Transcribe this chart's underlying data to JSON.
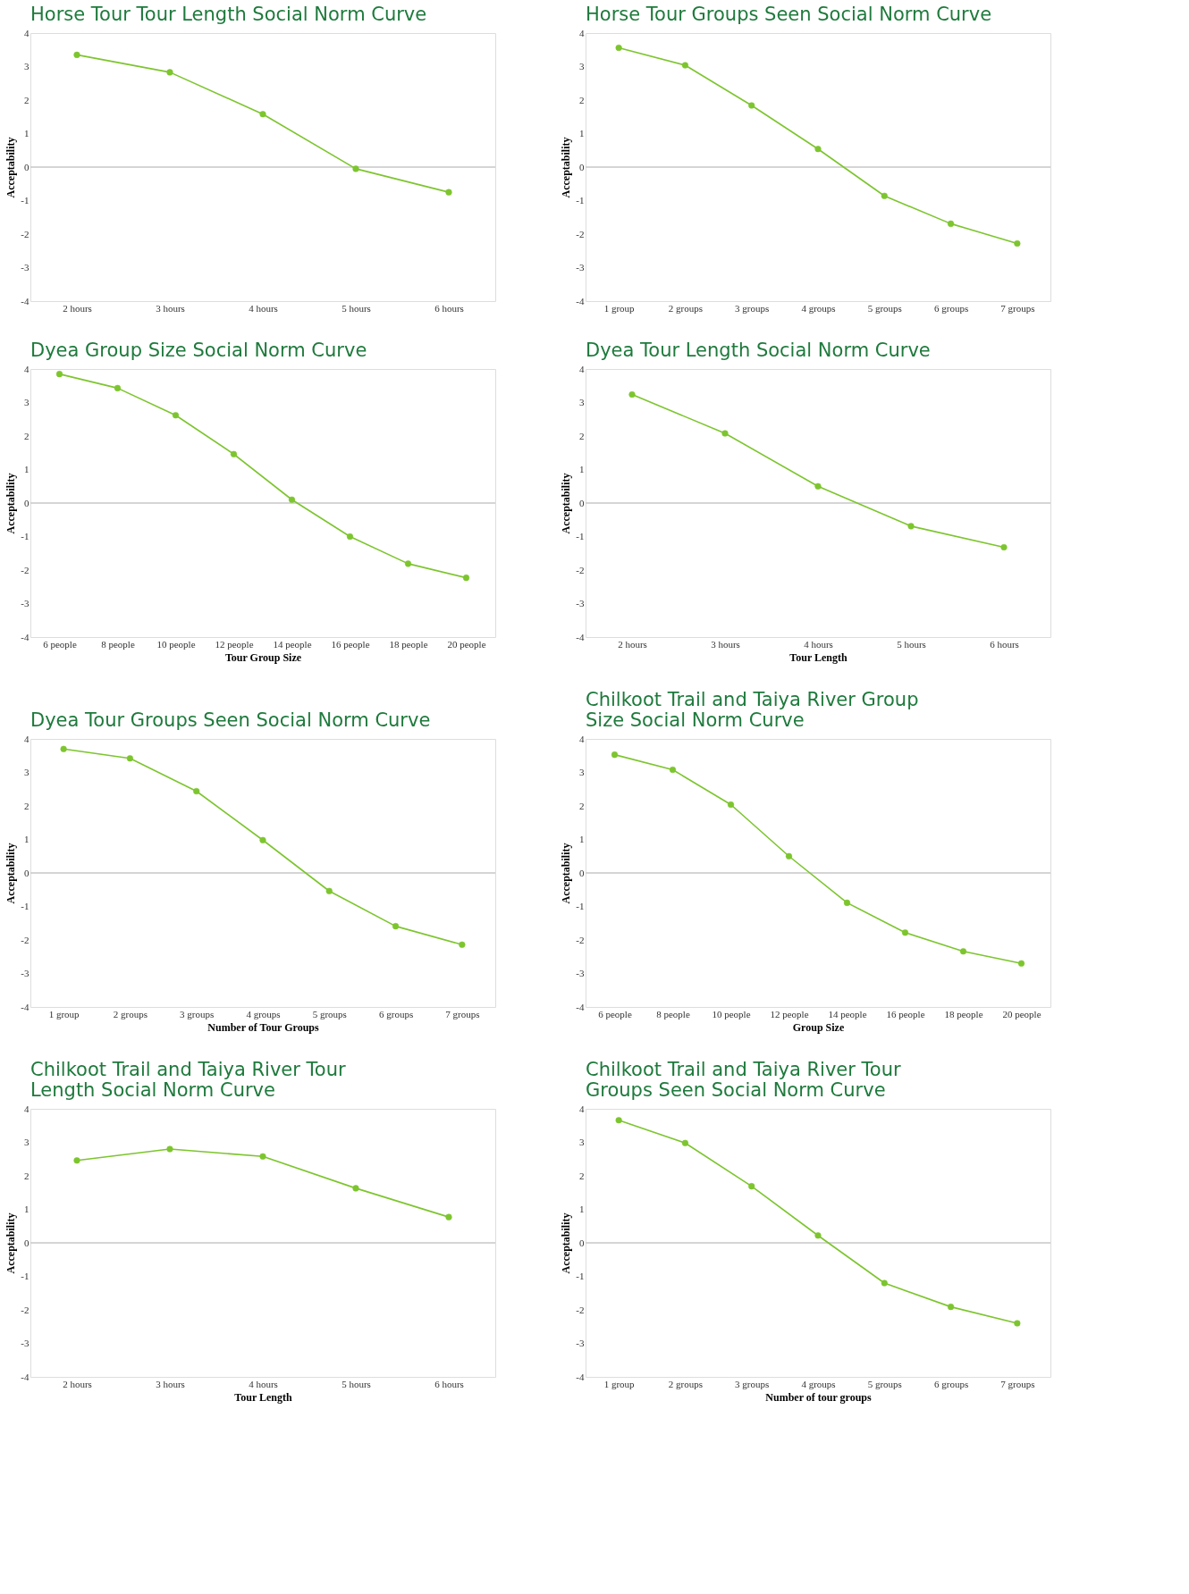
{
  "chart_data": [
    {
      "type": "line",
      "title": "Horse Tour Tour Length Social Norm Curve",
      "ylabel": "Acceptability",
      "categories": [
        "2 hours",
        "3 hours",
        "4 hours",
        "5 hours",
        "6 hours"
      ],
      "series": [
        {
          "color": "#7dc52e",
          "values": [
            3.35,
            2.83,
            1.58,
            -0.05,
            -0.75
          ]
        }
      ],
      "ylim": [
        -4,
        4
      ],
      "yticks": [
        -4,
        -3,
        -2,
        -1,
        0,
        1,
        2,
        3,
        4
      ],
      "ref_lines": [
        {
          "axis": "y",
          "value": 0,
          "color": "#c8c8c8"
        }
      ],
      "marker": "circle",
      "grid": false
    },
    {
      "type": "line",
      "title": "Horse Tour Groups Seen Social Norm Curve",
      "ylabel": "Acceptability",
      "categories": [
        "1 group",
        "2 groups",
        "3 groups",
        "4 groups",
        "5 groups",
        "6 groups",
        "7 groups"
      ],
      "series": [
        {
          "color": "#7dc52e",
          "values": [
            3.56,
            3.04,
            1.84,
            0.54,
            -0.86,
            -1.69,
            -2.28
          ]
        }
      ],
      "ylim": [
        -4,
        4
      ],
      "yticks": [
        -4,
        -3,
        -2,
        -1,
        0,
        1,
        2,
        3,
        4
      ],
      "ref_lines": [
        {
          "axis": "y",
          "value": 0,
          "color": "#c8c8c8"
        }
      ],
      "marker": "circle",
      "grid": false
    },
    {
      "type": "line",
      "title": "Dyea Group Size Social Norm Curve",
      "xlabel": "Tour Group Size",
      "ylabel": "Acceptability",
      "categories": [
        "6 people",
        "8 people",
        "10 people",
        "12 people",
        "14 people",
        "16 people",
        "18 people",
        "20 people"
      ],
      "series": [
        {
          "color": "#7dc52e",
          "values": [
            3.85,
            3.43,
            2.62,
            1.46,
            0.1,
            -1.0,
            -1.81,
            -2.23
          ]
        }
      ],
      "ylim": [
        -4,
        4
      ],
      "yticks": [
        -4,
        -3,
        -2,
        -1,
        0,
        1,
        2,
        3,
        4
      ],
      "ref_lines": [
        {
          "axis": "y",
          "value": 0,
          "color": "#c8c8c8"
        }
      ],
      "marker": "circle",
      "grid": false
    },
    {
      "type": "line",
      "title": "Dyea Tour Length Social Norm Curve",
      "xlabel": "Tour Length",
      "ylabel": "Acceptability",
      "categories": [
        "2 hours",
        "3 hours",
        "4 hours",
        "5 hours",
        "6 hours"
      ],
      "series": [
        {
          "color": "#7dc52e",
          "values": [
            3.24,
            2.08,
            0.5,
            -0.69,
            -1.32
          ]
        }
      ],
      "ylim": [
        -4,
        4
      ],
      "yticks": [
        -4,
        -3,
        -2,
        -1,
        0,
        1,
        2,
        3,
        4
      ],
      "ref_lines": [
        {
          "axis": "y",
          "value": 0,
          "color": "#c8c8c8"
        }
      ],
      "marker": "circle",
      "grid": false
    },
    {
      "type": "line",
      "title": "Dyea Tour Groups Seen Social Norm Curve",
      "xlabel": "Number of Tour Groups",
      "ylabel": "Acceptability",
      "categories": [
        "1 group",
        "2 groups",
        "3 groups",
        "4 groups",
        "5 groups",
        "6 groups",
        "7 groups"
      ],
      "series": [
        {
          "color": "#7dc52e",
          "values": [
            3.7,
            3.42,
            2.44,
            0.98,
            -0.54,
            -1.59,
            -2.14
          ]
        }
      ],
      "ylim": [
        -4,
        4
      ],
      "yticks": [
        -4,
        -3,
        -2,
        -1,
        0,
        1,
        2,
        3,
        4
      ],
      "ref_lines": [
        {
          "axis": "y",
          "value": 0,
          "color": "#c8c8c8"
        }
      ],
      "marker": "circle",
      "grid": false
    },
    {
      "type": "line",
      "title": "Chilkoot Trail and Taiya River Group Size Social Norm Curve",
      "xlabel": "Group Size",
      "ylabel": "Acceptability",
      "categories": [
        "6 people",
        "8 people",
        "10 people",
        "12 people",
        "14 people",
        "16 people",
        "18 people",
        "20 people"
      ],
      "series": [
        {
          "color": "#7dc52e",
          "values": [
            3.53,
            3.08,
            2.04,
            0.5,
            -0.89,
            -1.78,
            -2.34,
            -2.7
          ]
        }
      ],
      "ylim": [
        -4,
        4
      ],
      "yticks": [
        -4,
        -3,
        -2,
        -1,
        0,
        1,
        2,
        3,
        4
      ],
      "ref_lines": [
        {
          "axis": "y",
          "value": 0,
          "color": "#c8c8c8"
        }
      ],
      "marker": "circle",
      "grid": false
    },
    {
      "type": "line",
      "title": "Chilkoot Trail and Taiya River Tour Length Social Norm Curve",
      "xlabel": "Tour Length",
      "ylabel": "Acceptability",
      "categories": [
        "2 hours",
        "3 hours",
        "4 hours",
        "5 hours",
        "6 hours"
      ],
      "series": [
        {
          "color": "#7dc52e",
          "values": [
            2.46,
            2.8,
            2.58,
            1.63,
            0.77
          ]
        }
      ],
      "ylim": [
        -4,
        4
      ],
      "yticks": [
        -4,
        -3,
        -2,
        -1,
        0,
        1,
        2,
        3,
        4
      ],
      "ref_lines": [
        {
          "axis": "y",
          "value": 0,
          "color": "#c8c8c8"
        }
      ],
      "marker": "circle",
      "grid": false
    },
    {
      "type": "line",
      "title": "Chilkoot Trail and Taiya River Tour Groups Seen Social Norm Curve",
      "xlabel": "Number of tour groups",
      "ylabel": "Acceptability",
      "categories": [
        "1 group",
        "2 groups",
        "3 groups",
        "4 groups",
        "5 groups",
        "6 groups",
        "7 groups"
      ],
      "series": [
        {
          "color": "#7dc52e",
          "values": [
            3.66,
            2.98,
            1.69,
            0.22,
            -1.2,
            -1.91,
            -2.4
          ]
        }
      ],
      "ylim": [
        -4,
        4
      ],
      "yticks": [
        -4,
        -3,
        -2,
        -1,
        0,
        1,
        2,
        3,
        4
      ],
      "ref_lines": [
        {
          "axis": "y",
          "value": 0,
          "color": "#c8c8c8"
        }
      ],
      "marker": "circle",
      "grid": false
    }
  ]
}
